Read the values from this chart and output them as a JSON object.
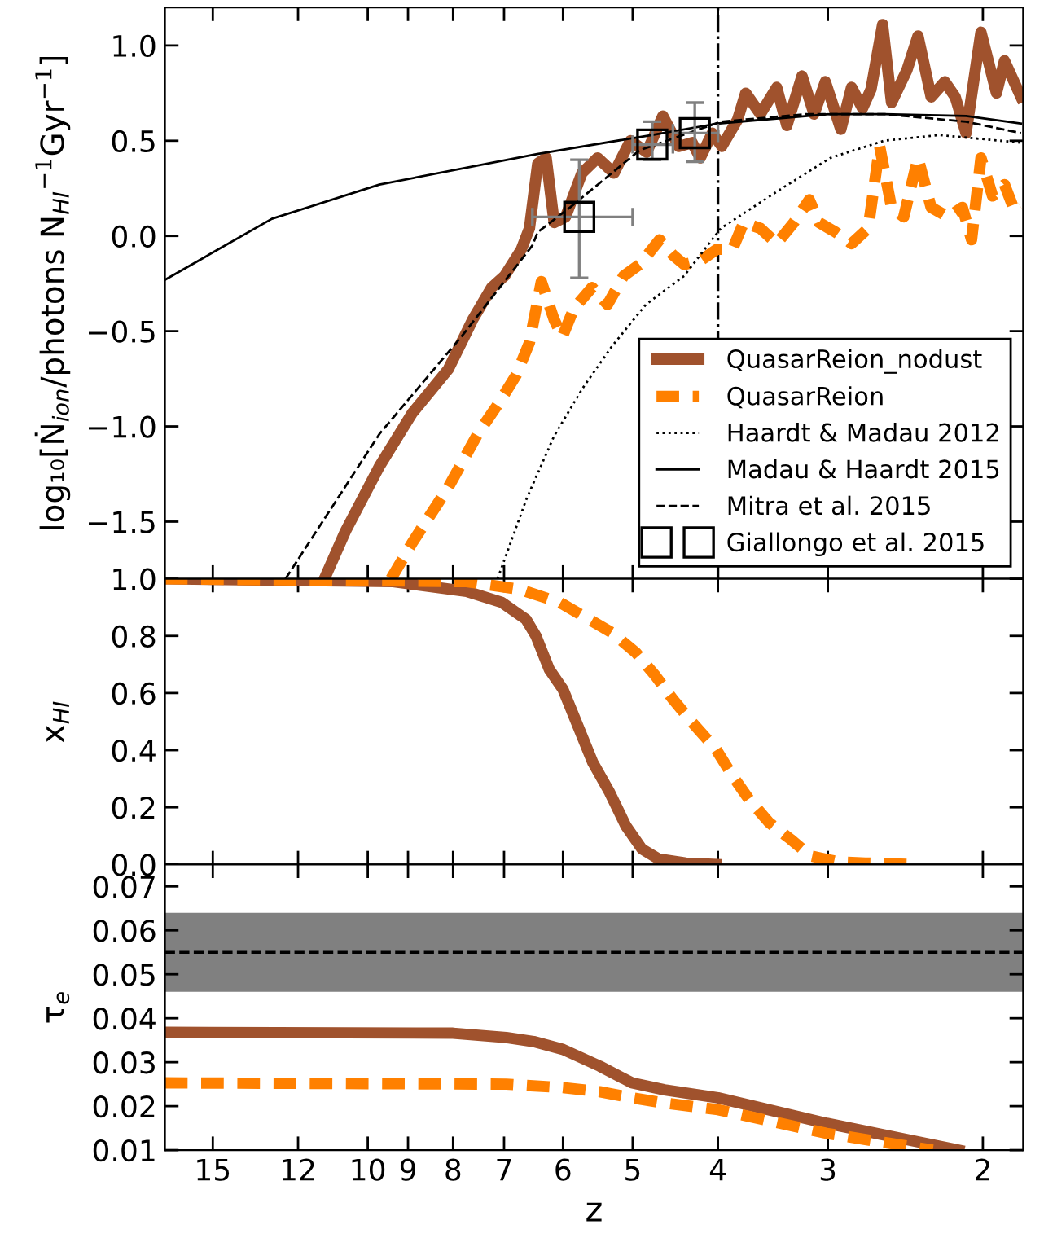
{
  "chart_data": [
    {
      "type": "line",
      "ylabel": "log₁₀[Ṅ$_{ion}$/photons N$_{HI}$$^{−1}$Gyr$^{−1}$]",
      "log": "x",
      "xlim": [
        17,
        1.8
      ],
      "xticks": [
        15,
        12,
        10,
        9,
        8,
        7,
        6,
        5,
        4,
        3,
        2
      ],
      "ylim": [
        -1.8,
        1.2
      ],
      "yticks": [
        {
          "value": -1.5,
          "label": "−1.5"
        },
        {
          "value": -1.0,
          "label": "−1.0"
        },
        {
          "value": -0.5,
          "label": "−0.5"
        },
        {
          "value": 0,
          "label": "0.0"
        },
        0.5,
        {
          "value": 1,
          "label": "1.0"
        }
      ],
      "tick_labels": "y",
      "legend": "bottom right",
      "series": [
        {
          "name": "QuasarReion_nodust",
          "color": "#a0522d",
          "line_style": "solid",
          "x": [
            11.2,
            10.6,
            9.7,
            8.9,
            8.1,
            7.6,
            7.23,
            6.99,
            6.69,
            6.55,
            6.41,
            6.27,
            6.14,
            5.96,
            5.71,
            5.48,
            5.25,
            5.03,
            4.82,
            4.62,
            4.43,
            4.28,
            4.19,
            4.06,
            3.96,
            3.8,
            3.72,
            3.58,
            3.43,
            3.34,
            3.21,
            3.11,
            3.02,
            2.9,
            2.82,
            2.74,
            2.68,
            2.6,
            2.54,
            2.44,
            2.37,
            2.29,
            2.21,
            2.15,
            2.09,
            2.01,
            1.93,
            1.89,
            1.81
          ],
          "values": [
            -1.8,
            -1.55,
            -1.21,
            -0.93,
            -0.7,
            -0.44,
            -0.27,
            -0.21,
            -0.07,
            0.04,
            0.38,
            0.41,
            0.07,
            0.1,
            0.33,
            0.41,
            0.33,
            0.5,
            0.44,
            0.63,
            0.47,
            0.49,
            0.41,
            0.54,
            0.47,
            0.61,
            0.75,
            0.64,
            0.78,
            0.58,
            0.84,
            0.64,
            0.81,
            0.56,
            0.78,
            0.67,
            0.77,
            1.11,
            0.7,
            0.87,
            1.05,
            0.73,
            0.81,
            0.73,
            0.54,
            1.07,
            0.75,
            0.92,
            0.73
          ]
        },
        {
          "name": "QuasarReion",
          "color": "#ff8000",
          "line_style": "dashed",
          "x": [
            9.41,
            8.9,
            8.1,
            7.5,
            7.08,
            6.78,
            6.55,
            6.35,
            6.14,
            6.01,
            5.83,
            5.56,
            5.34,
            5.12,
            4.91,
            4.66,
            4.5,
            4.37,
            4.19,
            4.01,
            3.85,
            3.74,
            3.58,
            3.43,
            3.28,
            3.15,
            3.07,
            2.94,
            2.82,
            2.7,
            2.62,
            2.54,
            2.46,
            2.37,
            2.29,
            2.19,
            2.11,
            2.06,
            2.01,
            1.95,
            1.89,
            1.84,
            1.81
          ],
          "values": [
            -1.8,
            -1.61,
            -1.32,
            -1.04,
            -0.87,
            -0.73,
            -0.56,
            -0.24,
            -0.44,
            -0.53,
            -0.38,
            -0.27,
            -0.36,
            -0.21,
            -0.15,
            -0.02,
            -0.1,
            -0.15,
            -0.13,
            -0.07,
            -0.07,
            0.07,
            0.04,
            -0.04,
            0.07,
            0.19,
            0.07,
            0.02,
            -0.04,
            0.04,
            0.47,
            0.15,
            0.1,
            0.41,
            0.15,
            0.1,
            0.15,
            -0.02,
            0.41,
            0.21,
            0.27,
            0.13,
            0.15
          ]
        },
        {
          "name": "Haardt & Madau 2012",
          "color": "#000000",
          "line_style": "dotted",
          "x": [
            7.12,
            6.6,
            6.14,
            5.7,
            5.28,
            4.83,
            4.37,
            3.97,
            3.41,
            2.98,
            2.59,
            2.24,
            1.81
          ],
          "values": [
            -1.8,
            -1.38,
            -1.05,
            -0.8,
            -0.58,
            -0.36,
            -0.21,
            0.04,
            0.24,
            0.41,
            0.5,
            0.53,
            0.49
          ]
        },
        {
          "name": "Madau & Haardt 2015",
          "color": "#000000",
          "line_style": "solid",
          "x": [
            17.0,
            12.85,
            9.7,
            6.42,
            4.76,
            4.01,
            2.98,
            2.59,
            2.09,
            1.81
          ],
          "values": [
            -0.23,
            0.09,
            0.27,
            0.43,
            0.53,
            0.59,
            0.64,
            0.64,
            0.63,
            0.59
          ]
        },
        {
          "name": "Mitra et al. 2015",
          "color": "#000000",
          "line_style": "dashed",
          "x": [
            12.4,
            9.7,
            7.83,
            6.5,
            6.41,
            5.89,
            4.91,
            3.97,
            3.17,
            2.59,
            2.09,
            1.81
          ],
          "values": [
            -1.8,
            -1.04,
            -0.53,
            -0.05,
            0.02,
            0.15,
            0.45,
            0.6,
            0.64,
            0.64,
            0.6,
            0.54
          ]
        },
        {
          "name": "Giallongo et al. 2015",
          "type": "scatter",
          "marker": "square",
          "color": "#000000",
          "x": [
            5.75,
            4.75,
            4.25
          ],
          "values": [
            0.1,
            0.48,
            0.54
          ],
          "errors": [
            [
              -0.22,
              0.4
            ],
            [
              0.4,
              0.6
            ],
            [
              0.39,
              0.7
            ]
          ],
          "xerrors": [
            [
              5.0,
              6.5
            ],
            [
              4.5,
              5.0
            ],
            [
              4.0,
              4.5
            ]
          ]
        }
      ],
      "ref_lines": [
        {
          "axis": "x",
          "value": 4,
          "color": "#000000",
          "line_style": "dashdot"
        }
      ]
    },
    {
      "type": "line",
      "ylabel": "x$_{HI}$",
      "log": "x",
      "xlim": [
        17,
        1.8
      ],
      "xticks": [
        15,
        12,
        10,
        9,
        8,
        7,
        6,
        5,
        4,
        3,
        2
      ],
      "ylim": [
        0.0,
        1.0
      ],
      "yticks": [
        {
          "value": 0,
          "label": "0.0"
        },
        0.2,
        0.4,
        0.6,
        0.8,
        {
          "value": 1,
          "label": "1.0"
        }
      ],
      "tick_labels": "y",
      "series": [
        {
          "color": "#a0522d",
          "line_style": "solid",
          "x": [
            17.0,
            9.36,
            7.72,
            7.04,
            6.61,
            6.44,
            6.22,
            6.0,
            5.75,
            5.55,
            5.31,
            5.09,
            4.88,
            4.67,
            4.35,
            4.02
          ],
          "values": [
            1.0,
            0.99,
            0.956,
            0.917,
            0.858,
            0.8,
            0.683,
            0.613,
            0.473,
            0.357,
            0.252,
            0.135,
            0.054,
            0.019,
            0.005,
            0.0
          ]
        },
        {
          "color": "#ff8000",
          "line_style": "dashed",
          "x": [
            17.0,
            7.72,
            6.72,
            6.05,
            5.27,
            4.96,
            4.71,
            4.5,
            4.28,
            4.02,
            3.85,
            3.69,
            3.5,
            3.31,
            3.14,
            2.92,
            2.72,
            2.41
          ],
          "values": [
            1.0,
            0.99,
            0.963,
            0.917,
            0.81,
            0.742,
            0.66,
            0.578,
            0.497,
            0.403,
            0.31,
            0.229,
            0.147,
            0.089,
            0.03,
            0.009,
            0.005,
            0.0
          ]
        }
      ]
    },
    {
      "type": "line",
      "xlabel": "z",
      "ylabel": "τ$_{e}$",
      "log": "x",
      "xlim": [
        17,
        1.8
      ],
      "xticks": [
        15,
        12,
        10,
        9,
        8,
        7,
        6,
        5,
        4,
        3,
        2
      ],
      "ylim": [
        0.01,
        0.075
      ],
      "yticks": [
        0.01,
        0.02,
        0.03,
        0.04,
        0.05,
        0.06,
        0.07
      ],
      "series": [
        {
          "color": "#a0522d",
          "line_style": "solid",
          "x": [
            17.0,
            8.0,
            6.96,
            6.48,
            6.0,
            5.45,
            5.01,
            4.6,
            4.0,
            3.01,
            2.13
          ],
          "values": [
            0.0368,
            0.0366,
            0.0356,
            0.0347,
            0.0329,
            0.0291,
            0.0253,
            0.0237,
            0.0219,
            0.0161,
            0.01
          ]
        },
        {
          "color": "#ff8000",
          "line_style": "dashed",
          "x": [
            17.0,
            6.96,
            6.0,
            5.45,
            5.01,
            4.6,
            4.0,
            3.01,
            2.28
          ],
          "values": [
            0.0253,
            0.025,
            0.0242,
            0.0233,
            0.0219,
            0.0207,
            0.0192,
            0.0138,
            0.01
          ]
        }
      ],
      "ref_lines": [
        {
          "axis": "y",
          "value": 0.055,
          "color": "#000000",
          "line_style": "dashed"
        }
      ],
      "bands": [
        {
          "axis": "y",
          "from": 0.046,
          "to": 0.064,
          "color": "#808080"
        }
      ]
    }
  ]
}
